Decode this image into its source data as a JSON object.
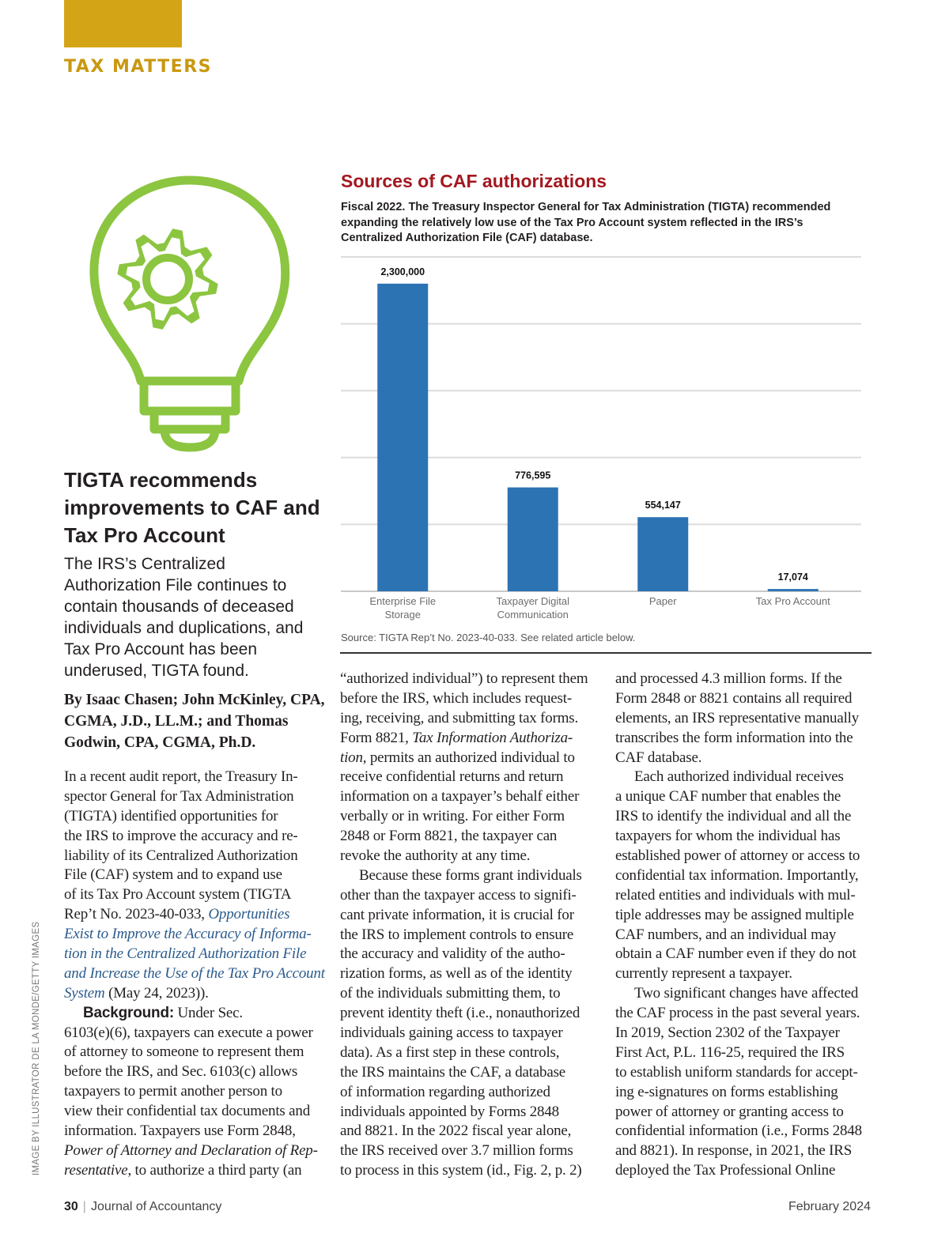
{
  "section": "TAX MATTERS",
  "colors": {
    "gold": "#d4a417",
    "bulb_green": "#8cc540",
    "bar_blue": "#2c73b4",
    "chart_title_red": "#a3181f",
    "link_blue": "#2a5a8c"
  },
  "illustration": {
    "icon": "lightbulb-gear-icon"
  },
  "headline": "TIGTA recommends improvements to CAF and Tax Pro Account",
  "deck": "The IRS’s Centralized Authorization File continues to contain thousands of deceased individuals and duplications, and Tax Pro Account has been underused, TIGTA found.",
  "byline": "By Isaac Chasen; John McKinley, CPA, CGMA, J.D., LL.M.; and Thomas Godwin, CPA, CGMA, Ph.D.",
  "chart": {
    "title": "Sources of CAF authorizations",
    "subtitle": "Fiscal 2022. The Treasury Inspector General for Tax Administration (TIGTA) recommended expanding the relatively low use of the Tax Pro Account system reflected in the IRS’s Centralized Authorization File (CAF) database.",
    "source": "Source: TIGTA Rep’t No. 2023-40-033. See related article below."
  },
  "chart_data": {
    "type": "bar",
    "categories": [
      [
        "Enterprise File",
        "Storage"
      ],
      [
        "Taxpayer Digital",
        "Communication"
      ],
      [
        "Paper"
      ],
      [
        "Tax Pro Account"
      ]
    ],
    "values": [
      2300000,
      776595,
      554147,
      17074
    ],
    "value_labels": [
      "2,300,000",
      "776,595",
      "554,147",
      "17,074"
    ],
    "ylim": [
      0,
      2500000
    ],
    "grid": true,
    "grid_step": 500000,
    "y_tick_labels_shown": false
  },
  "columns": [
    {
      "paragraphs": [
        {
          "lines": [
            [
              [
                "In a recent audit report, the Treasury In-",
                ""
              ]
            ],
            [
              [
                "spector General for Tax Administration",
                ""
              ]
            ],
            [
              [
                "(TIGTA) identified opportunities for",
                ""
              ]
            ],
            [
              [
                "the IRS to improve the accuracy and re-",
                ""
              ]
            ],
            [
              [
                "liability of its Centralized Authorization",
                ""
              ]
            ],
            [
              [
                "File (CAF) system and to expand use",
                ""
              ]
            ],
            [
              [
                "of its Tax Pro Account system (TIGTA",
                ""
              ]
            ],
            [
              [
                "Rep’t No. 2023-40-033, ",
                ""
              ],
              [
                "Opportunities",
                "a"
              ]
            ],
            [
              [
                "Exist to Improve the Accuracy of Informa-",
                "a"
              ]
            ],
            [
              [
                "tion in the Centralized Authorization File",
                "a"
              ]
            ],
            [
              [
                "and Increase the Use of the Tax Pro Account",
                "a"
              ]
            ],
            [
              [
                "System",
                "a"
              ],
              [
                " (May 24, 2023)).",
                ""
              ]
            ]
          ]
        },
        {
          "lines": [
            [
              [
                "Background:",
                "b"
              ],
              [
                " Under Sec.",
                ""
              ]
            ],
            [
              [
                "6103(e)(6), taxpayers can execute a power",
                ""
              ]
            ],
            [
              [
                "of attorney to someone to represent them",
                ""
              ]
            ],
            [
              [
                "before the IRS, and Sec. 6103(c) allows",
                ""
              ]
            ],
            [
              [
                "taxpayers to permit another person to",
                ""
              ]
            ],
            [
              [
                "view their confidential tax documents and",
                ""
              ]
            ],
            [
              [
                "information. Taxpayers use Form 2848,",
                ""
              ]
            ],
            [
              [
                "Power of Attorney and Declaration of Rep-",
                "i"
              ]
            ],
            [
              [
                "resentative",
                "i"
              ],
              [
                ", to authorize a third party (an",
                ""
              ]
            ]
          ]
        }
      ]
    },
    {
      "paragraphs": [
        {
          "lines": [
            [
              [
                "“authorized individual”) to represent them",
                ""
              ]
            ],
            [
              [
                "before the IRS, which includes request-",
                ""
              ]
            ],
            [
              [
                "ing, receiving, and submitting tax forms.",
                ""
              ]
            ],
            [
              [
                "Form 8821, ",
                ""
              ],
              [
                "Tax Information Authoriza-",
                "i"
              ]
            ],
            [
              [
                "tion",
                "i"
              ],
              [
                ", permits an authorized individual to",
                ""
              ]
            ],
            [
              [
                "receive confidential returns and return",
                ""
              ]
            ],
            [
              [
                "information on a taxpayer’s behalf either",
                ""
              ]
            ],
            [
              [
                "verbally or in writing. For either Form",
                ""
              ]
            ],
            [
              [
                "2848 or Form 8821, the taxpayer can",
                ""
              ]
            ],
            [
              [
                "revoke the authority at any time.",
                ""
              ]
            ]
          ]
        },
        {
          "lines": [
            [
              [
                "Because these forms grant individuals",
                ""
              ]
            ],
            [
              [
                "other than the taxpayer access to signifi-",
                ""
              ]
            ],
            [
              [
                "cant private information, it is crucial for",
                ""
              ]
            ],
            [
              [
                "the IRS to implement controls to ensure",
                ""
              ]
            ],
            [
              [
                "the accuracy and validity of the autho-",
                ""
              ]
            ],
            [
              [
                "rization forms, as well as of the identity",
                ""
              ]
            ],
            [
              [
                "of the individuals submitting them, to",
                ""
              ]
            ],
            [
              [
                "prevent identity theft (i.e., nonauthorized",
                ""
              ]
            ],
            [
              [
                "individuals gaining access to taxpayer",
                ""
              ]
            ],
            [
              [
                "data). As a first step in these controls,",
                ""
              ]
            ],
            [
              [
                "the IRS maintains the CAF, a database",
                ""
              ]
            ],
            [
              [
                "of information regarding authorized",
                ""
              ]
            ],
            [
              [
                "individuals appointed by Forms 2848",
                ""
              ]
            ],
            [
              [
                "and 8821. In the 2022 fiscal year alone,",
                ""
              ]
            ],
            [
              [
                "the IRS received over 3.7 million forms",
                ""
              ]
            ],
            [
              [
                "to process in this system (id., Fig. 2, p. 2)",
                ""
              ]
            ]
          ]
        }
      ]
    },
    {
      "paragraphs": [
        {
          "lines": [
            [
              [
                "and processed 4.3 million forms. If the",
                ""
              ]
            ],
            [
              [
                "Form 2848 or 8821 contains all required",
                ""
              ]
            ],
            [
              [
                "elements, an IRS representative manually",
                ""
              ]
            ],
            [
              [
                "transcribes the form information into the",
                ""
              ]
            ],
            [
              [
                "CAF database.",
                ""
              ]
            ]
          ]
        },
        {
          "lines": [
            [
              [
                "Each authorized individual receives",
                ""
              ]
            ],
            [
              [
                "a unique CAF number that enables the",
                ""
              ]
            ],
            [
              [
                "IRS to identify the individual and all the",
                ""
              ]
            ],
            [
              [
                "taxpayers for whom the individual has",
                ""
              ]
            ],
            [
              [
                "established power of attorney or access to",
                ""
              ]
            ],
            [
              [
                "confidential tax information. Importantly,",
                ""
              ]
            ],
            [
              [
                "related entities and individuals with mul-",
                ""
              ]
            ],
            [
              [
                "tiple addresses may be assigned multiple",
                ""
              ]
            ],
            [
              [
                "CAF numbers, and an individual may",
                ""
              ]
            ],
            [
              [
                "obtain a CAF number even if they do not",
                ""
              ]
            ],
            [
              [
                "currently represent a taxpayer.",
                ""
              ]
            ]
          ]
        },
        {
          "lines": [
            [
              [
                "Two significant changes have affected",
                ""
              ]
            ],
            [
              [
                "the CAF process in the past several years.",
                ""
              ]
            ],
            [
              [
                "In 2019, Section 2302 of the Taxpayer",
                ""
              ]
            ],
            [
              [
                "First Act, P.L. 116-25, required the IRS",
                ""
              ]
            ],
            [
              [
                "to establish uniform standards for accept-",
                ""
              ]
            ],
            [
              [
                "ing e-signatures on forms establishing",
                ""
              ]
            ],
            [
              [
                "power of attorney or granting access to",
                ""
              ]
            ],
            [
              [
                "confidential information (i.e., Forms 2848",
                ""
              ]
            ],
            [
              [
                "and 8821). In response, in 2021, the IRS",
                ""
              ]
            ],
            [
              [
                "deployed the Tax Professional Online",
                ""
              ]
            ]
          ]
        }
      ]
    }
  ],
  "credit": "IMAGE BY ILLUSTRATOR DE LA MONDE/GETTY IMAGES",
  "footer": {
    "page_number": "30",
    "publication": "Journal of Accountancy",
    "date": "February 2024"
  }
}
